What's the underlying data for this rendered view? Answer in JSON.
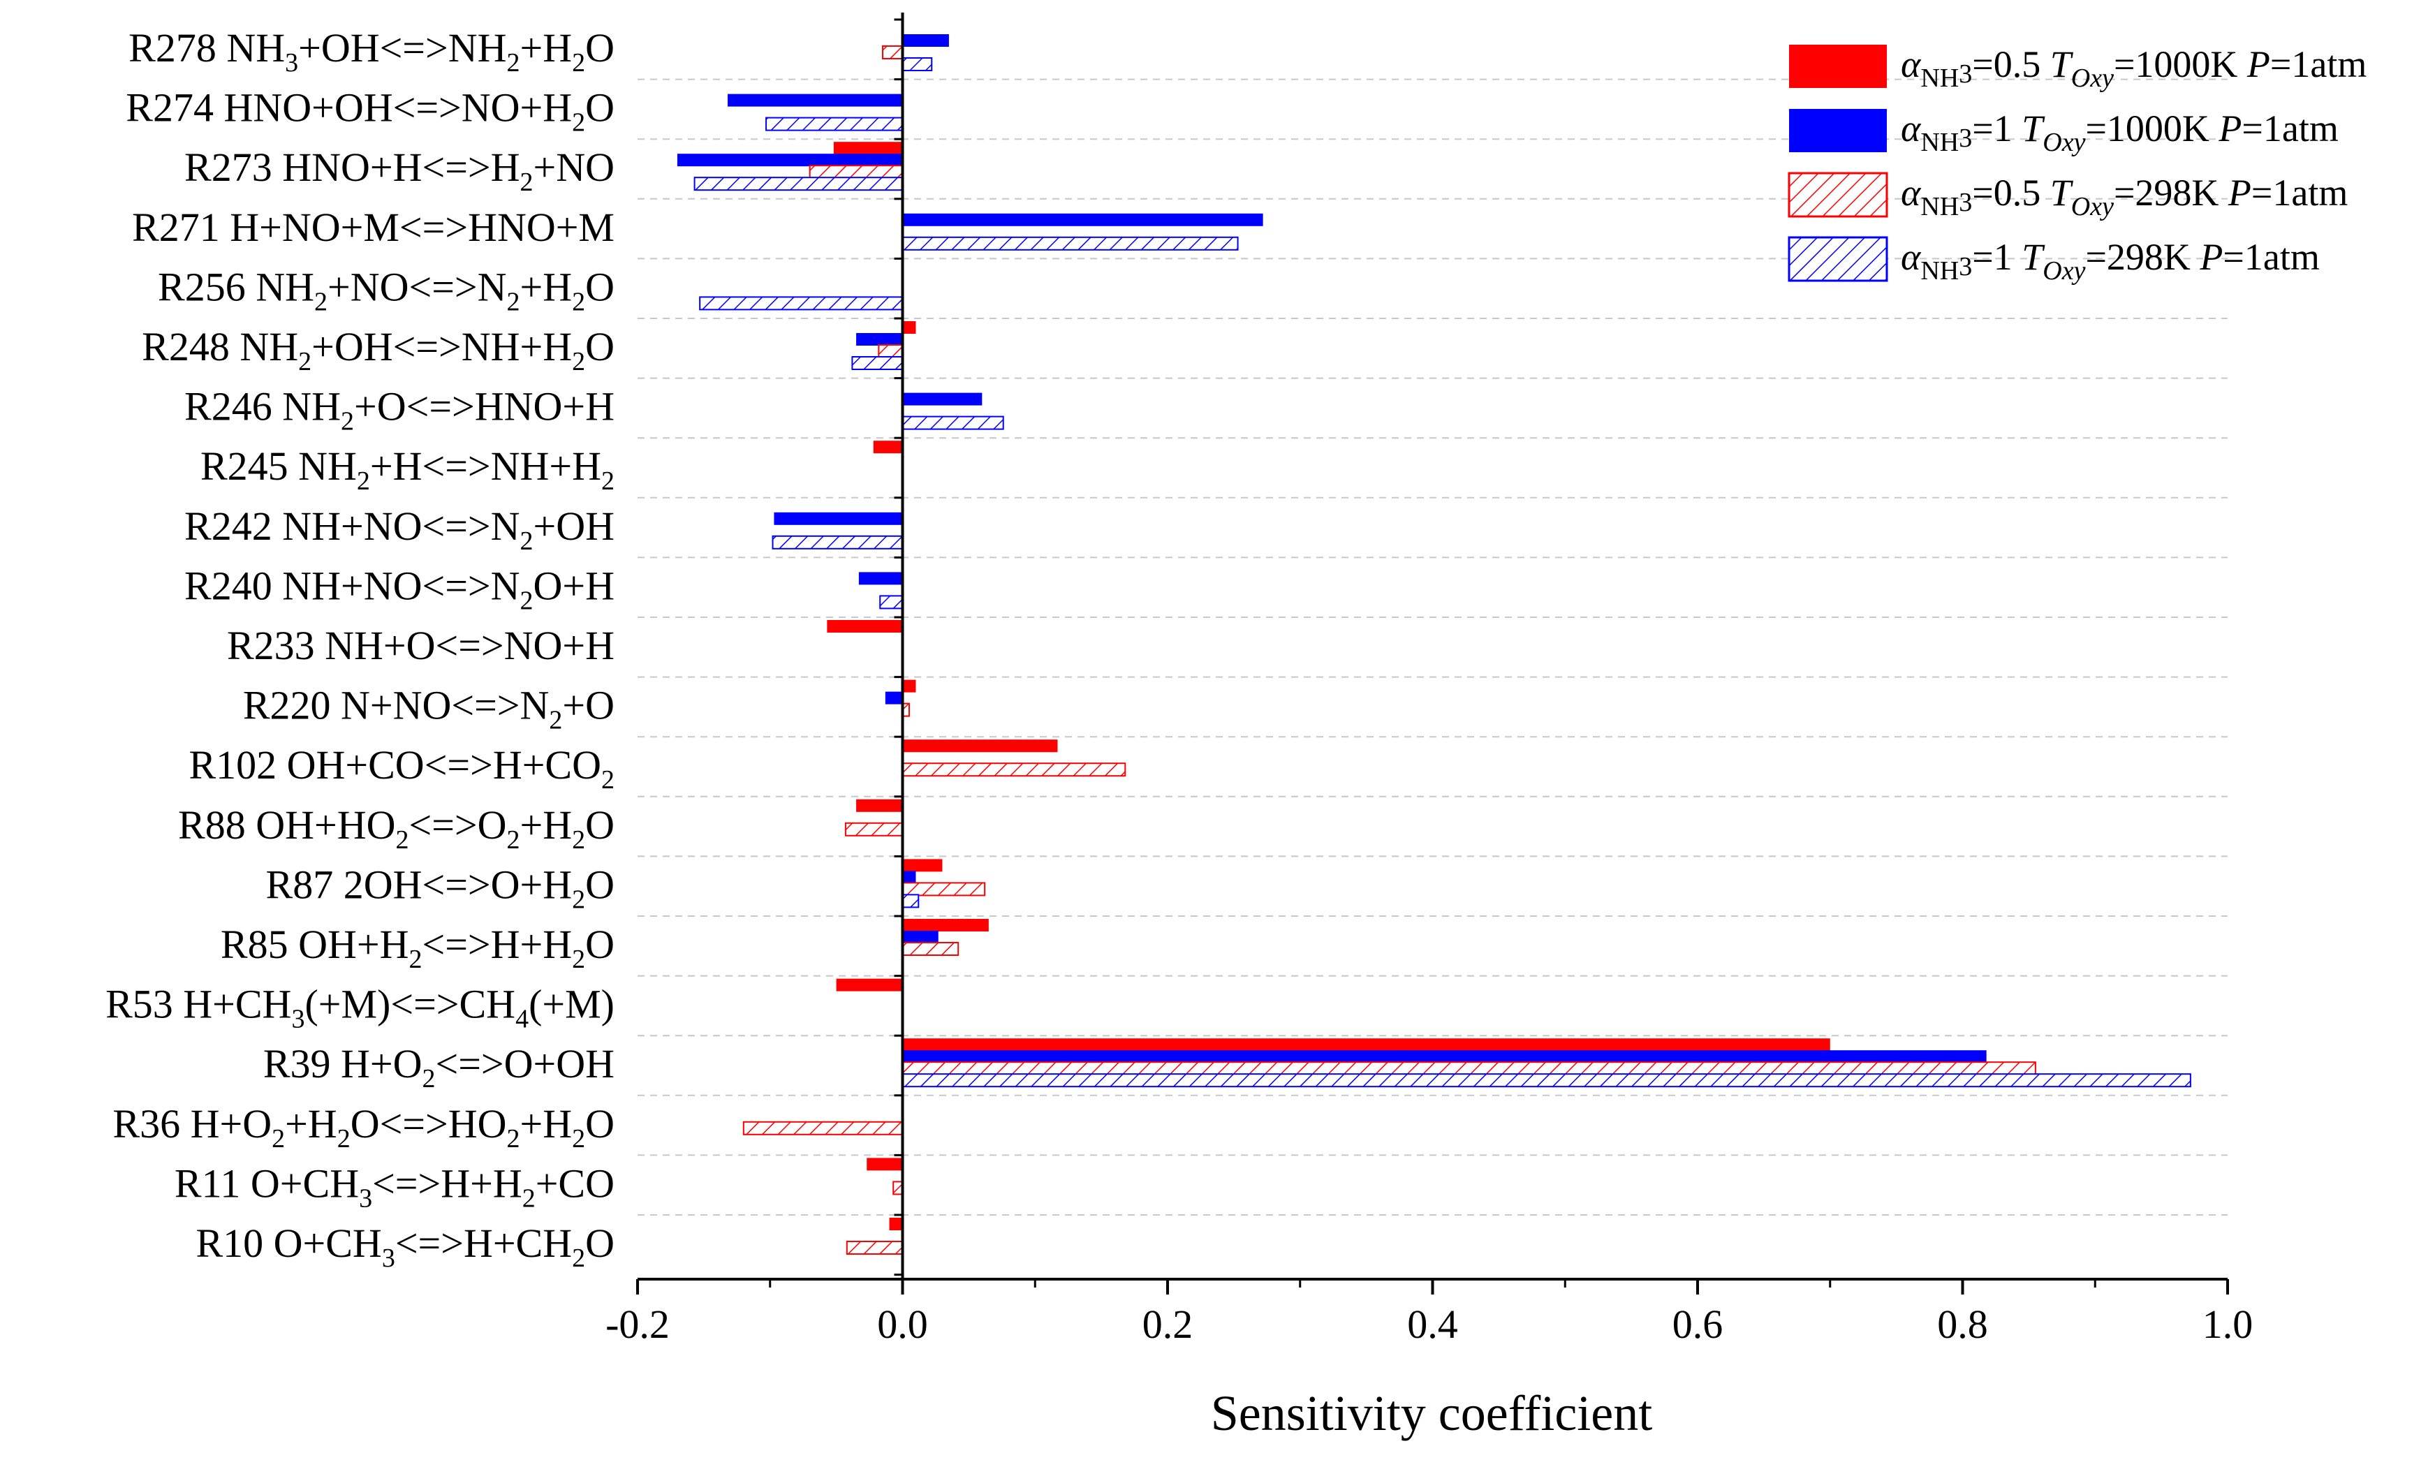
{
  "chart_data": {
    "type": "bar",
    "orientation": "horizontal",
    "title": "",
    "xlabel": "Sensitivity coefficient",
    "ylabel": "",
    "xlim": [
      -0.2,
      1.0
    ],
    "xticks": [
      -0.2,
      0.0,
      0.2,
      0.4,
      0.6,
      0.8,
      1.0
    ],
    "xtick_labels": [
      "-0.2",
      "0.0",
      "0.2",
      "0.4",
      "0.6",
      "0.8",
      "1.0"
    ],
    "grid": "horizontal dashed separators between reactions",
    "legend_position": "top-right",
    "categories": [
      {
        "id": "R278",
        "parts": [
          [
            "n",
            "R278 NH"
          ],
          [
            "d",
            "3"
          ],
          [
            "n",
            "+OH<=>NH"
          ],
          [
            "d",
            "2"
          ],
          [
            "n",
            "+H"
          ],
          [
            "d",
            "2"
          ],
          [
            "n",
            "O"
          ]
        ]
      },
      {
        "id": "R274",
        "parts": [
          [
            "n",
            "R274 HNO+OH<=>NO+H"
          ],
          [
            "d",
            "2"
          ],
          [
            "n",
            "O"
          ]
        ]
      },
      {
        "id": "R273",
        "parts": [
          [
            "n",
            "R273 HNO+H<=>H"
          ],
          [
            "d",
            "2"
          ],
          [
            "n",
            "+NO"
          ]
        ]
      },
      {
        "id": "R271",
        "parts": [
          [
            "n",
            "R271 H+NO+M<=>HNO+M"
          ]
        ]
      },
      {
        "id": "R256",
        "parts": [
          [
            "n",
            "R256 NH"
          ],
          [
            "d",
            "2"
          ],
          [
            "n",
            "+NO<=>N"
          ],
          [
            "d",
            "2"
          ],
          [
            "n",
            "+H"
          ],
          [
            "d",
            "2"
          ],
          [
            "n",
            "O"
          ]
        ]
      },
      {
        "id": "R248",
        "parts": [
          [
            "n",
            "R248 NH"
          ],
          [
            "d",
            "2"
          ],
          [
            "n",
            "+OH<=>NH+H"
          ],
          [
            "d",
            "2"
          ],
          [
            "n",
            "O"
          ]
        ]
      },
      {
        "id": "R246",
        "parts": [
          [
            "n",
            "R246 NH"
          ],
          [
            "d",
            "2"
          ],
          [
            "n",
            "+O<=>HNO+H"
          ]
        ]
      },
      {
        "id": "R245",
        "parts": [
          [
            "n",
            "R245 NH"
          ],
          [
            "d",
            "2"
          ],
          [
            "n",
            "+H<=>NH+H"
          ],
          [
            "d",
            "2"
          ]
        ]
      },
      {
        "id": "R242",
        "parts": [
          [
            "n",
            "R242 NH+NO<=>N"
          ],
          [
            "d",
            "2"
          ],
          [
            "n",
            "+OH"
          ]
        ]
      },
      {
        "id": "R240",
        "parts": [
          [
            "n",
            "R240 NH+NO<=>N"
          ],
          [
            "d",
            "2"
          ],
          [
            "n",
            "O+H"
          ]
        ]
      },
      {
        "id": "R233",
        "parts": [
          [
            "n",
            "R233 NH+O<=>NO+H"
          ]
        ]
      },
      {
        "id": "R220",
        "parts": [
          [
            "n",
            "R220 N+NO<=>N"
          ],
          [
            "d",
            "2"
          ],
          [
            "n",
            "+O"
          ]
        ]
      },
      {
        "id": "R102",
        "parts": [
          [
            "n",
            "R102 OH+CO<=>H+CO"
          ],
          [
            "d",
            "2"
          ]
        ]
      },
      {
        "id": "R88",
        "parts": [
          [
            "n",
            "R88 OH+HO"
          ],
          [
            "d",
            "2"
          ],
          [
            "n",
            "<=>O"
          ],
          [
            "d",
            "2"
          ],
          [
            "n",
            "+H"
          ],
          [
            "d",
            "2"
          ],
          [
            "n",
            "O"
          ]
        ]
      },
      {
        "id": "R87",
        "parts": [
          [
            "n",
            "R87 2OH<=>O+H"
          ],
          [
            "d",
            "2"
          ],
          [
            "n",
            "O"
          ]
        ]
      },
      {
        "id": "R85",
        "parts": [
          [
            "n",
            "R85 OH+H"
          ],
          [
            "d",
            "2"
          ],
          [
            "n",
            "<=>H+H"
          ],
          [
            "d",
            "2"
          ],
          [
            "n",
            "O"
          ]
        ]
      },
      {
        "id": "R53",
        "parts": [
          [
            "n",
            "R53 H+CH"
          ],
          [
            "d",
            "3"
          ],
          [
            "n",
            "(+M)<=>CH"
          ],
          [
            "d",
            "4"
          ],
          [
            "n",
            "(+M)"
          ]
        ]
      },
      {
        "id": "R39",
        "parts": [
          [
            "n",
            "R39 H+O"
          ],
          [
            "d",
            "2"
          ],
          [
            "n",
            "<=>O+OH"
          ]
        ]
      },
      {
        "id": "R36",
        "parts": [
          [
            "n",
            "R36 H+O"
          ],
          [
            "d",
            "2"
          ],
          [
            "n",
            "+H"
          ],
          [
            "d",
            "2"
          ],
          [
            "n",
            "O<=>HO"
          ],
          [
            "d",
            "2"
          ],
          [
            "n",
            "+H"
          ],
          [
            "d",
            "2"
          ],
          [
            "n",
            "O"
          ]
        ]
      },
      {
        "id": "R11",
        "parts": [
          [
            "n",
            "R11 O+CH"
          ],
          [
            "d",
            "3"
          ],
          [
            "n",
            "<=>H+H"
          ],
          [
            "d",
            "2"
          ],
          [
            "n",
            "+CO"
          ]
        ]
      },
      {
        "id": "R10",
        "parts": [
          [
            "n",
            "R10 O+CH"
          ],
          [
            "d",
            "3"
          ],
          [
            "n",
            "<=>H+CH"
          ],
          [
            "d",
            "2"
          ],
          [
            "n",
            "O"
          ]
        ]
      }
    ],
    "series": [
      {
        "name": "aNH3=0.5 TOxy=1000K P=1atm",
        "label_parts": [
          [
            "i",
            "α"
          ],
          [
            "d",
            "NH"
          ],
          [
            "d3",
            "3"
          ],
          [
            "n",
            "=0.5 "
          ],
          [
            "i",
            "T"
          ],
          [
            "di",
            "Oxy"
          ],
          [
            "n",
            "=1000K "
          ],
          [
            "i",
            "P"
          ],
          [
            "n",
            "=1atm"
          ]
        ],
        "color": "#ff0000",
        "style": "solid",
        "values": [
          0.0,
          0.0,
          -0.052,
          0.0,
          0.0,
          0.01,
          0.0,
          -0.022,
          0.0,
          0.0,
          -0.057,
          0.01,
          0.117,
          -0.035,
          0.03,
          0.065,
          -0.05,
          0.7,
          0.0,
          -0.027,
          -0.01
        ]
      },
      {
        "name": "aNH3=1 TOxy=1000K P=1atm",
        "label_parts": [
          [
            "i",
            "α"
          ],
          [
            "d",
            "NH"
          ],
          [
            "d3",
            "3"
          ],
          [
            "n",
            "=1 "
          ],
          [
            "i",
            "T"
          ],
          [
            "di",
            "Oxy"
          ],
          [
            "n",
            "=1000K "
          ],
          [
            "i",
            "P"
          ],
          [
            "n",
            "=1atm"
          ]
        ],
        "color": "#0000ff",
        "style": "solid",
        "values": [
          0.035,
          -0.132,
          -0.17,
          0.272,
          0.0,
          -0.035,
          0.06,
          0.0,
          -0.097,
          -0.033,
          0.0,
          -0.013,
          0.0,
          0.0,
          0.01,
          0.027,
          0.0,
          0.818,
          0.0,
          0.0,
          0.0
        ]
      },
      {
        "name": "aNH3=0.5 TOxy=298K P=1atm",
        "label_parts": [
          [
            "i",
            "α"
          ],
          [
            "d",
            "NH"
          ],
          [
            "d3",
            "3"
          ],
          [
            "n",
            "=0.5 "
          ],
          [
            "i",
            "T"
          ],
          [
            "di",
            "Oxy"
          ],
          [
            "n",
            "=298K "
          ],
          [
            "i",
            "P"
          ],
          [
            "n",
            "=1atm"
          ]
        ],
        "color": "#ff0000",
        "style": "hatched",
        "values": [
          -0.015,
          0.0,
          -0.07,
          0.0,
          0.0,
          -0.018,
          0.0,
          0.0,
          0.0,
          0.0,
          0.0,
          0.005,
          0.168,
          -0.043,
          0.062,
          0.042,
          0.0,
          0.855,
          -0.12,
          -0.007,
          -0.042
        ]
      },
      {
        "name": "aNH3=1 TOxy=298K P=1atm",
        "label_parts": [
          [
            "i",
            "α"
          ],
          [
            "d",
            "NH"
          ],
          [
            "d3",
            "3"
          ],
          [
            "n",
            "=1 "
          ],
          [
            "i",
            "T"
          ],
          [
            "di",
            "Oxy"
          ],
          [
            "n",
            "=298K "
          ],
          [
            "i",
            "P"
          ],
          [
            "n",
            "=1atm"
          ]
        ],
        "color": "#0000ff",
        "style": "hatched",
        "values": [
          0.022,
          -0.103,
          -0.157,
          0.253,
          -0.153,
          -0.038,
          0.076,
          0.0,
          -0.098,
          -0.017,
          0.0,
          0.0,
          0.0,
          0.0,
          0.012,
          0.0,
          0.0,
          0.972,
          0.0,
          0.0,
          0.0
        ]
      }
    ]
  }
}
